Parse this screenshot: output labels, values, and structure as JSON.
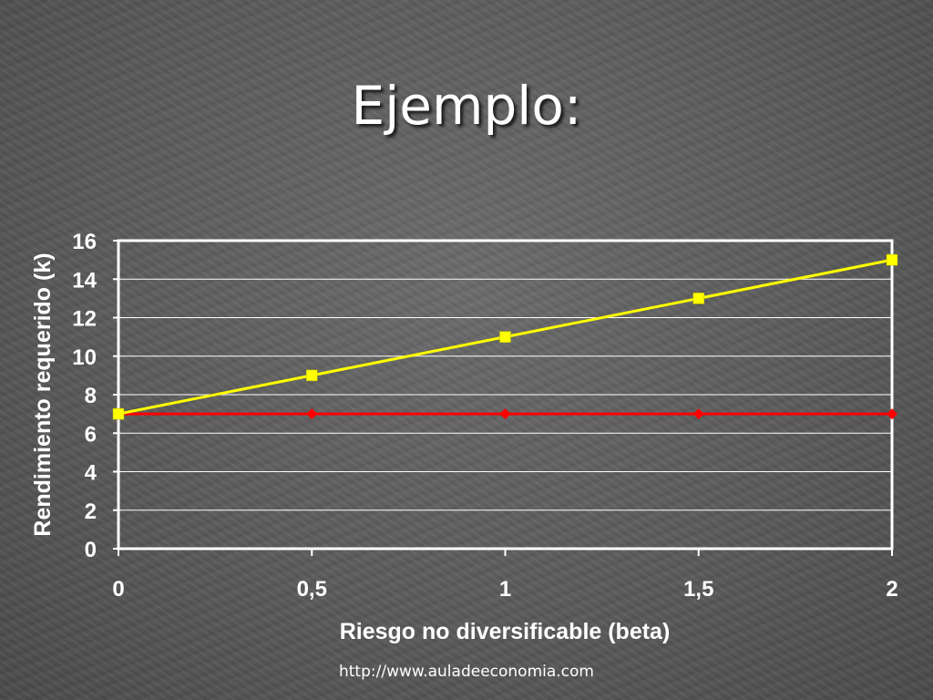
{
  "slide": {
    "title": "Ejemplo:",
    "footer": "http://www.auladeeconomia.com"
  },
  "chart_data": {
    "type": "line",
    "x": [
      0,
      0.5,
      1,
      1.5,
      2
    ],
    "xticks": [
      "0",
      "0,5",
      "1",
      "1,5",
      "2"
    ],
    "xlim": [
      0,
      2
    ],
    "ylim": [
      0,
      16
    ],
    "yticks": [
      "0",
      "2",
      "4",
      "6",
      "8",
      "10",
      "12",
      "14",
      "16"
    ],
    "xlabel": "Riesgo no diversificable (beta)",
    "ylabel": "Rendimiento requerido (k)",
    "grid": true,
    "legend": false,
    "series": [
      {
        "values": [
          7,
          9,
          11,
          13,
          15
        ],
        "color": "#ffff00",
        "marker": "square"
      },
      {
        "values": [
          7,
          7,
          7,
          7,
          7
        ],
        "color": "#ff0000",
        "marker": "diamond"
      }
    ]
  }
}
